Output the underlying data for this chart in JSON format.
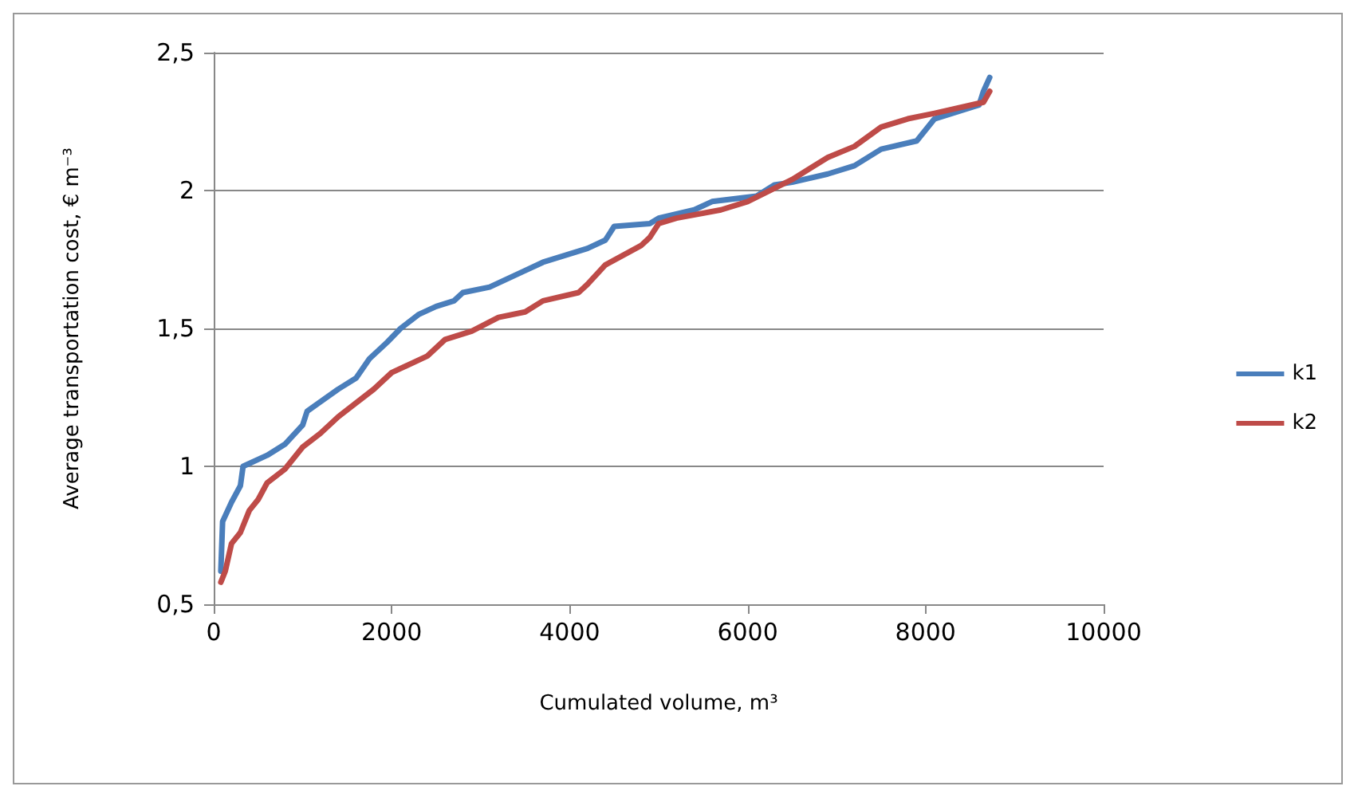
{
  "chart_data": {
    "type": "line",
    "xlabel": "Cumulated volume, m³",
    "ylabel": "Average transportation cost, € m⁻³",
    "xlim": [
      0,
      10000
    ],
    "xticks": [
      0,
      2000,
      4000,
      6000,
      8000,
      10000
    ],
    "ylim": [
      0.5,
      2.5
    ],
    "yticks": [
      {
        "value": 0.5,
        "label": "0,5"
      },
      {
        "value": 1,
        "label": "1"
      },
      {
        "value": 1.5,
        "label": "1,5"
      },
      {
        "value": 2,
        "label": "2"
      },
      {
        "value": 2.5,
        "label": "2,5"
      }
    ],
    "grid": "y",
    "legend": "right",
    "marker": "none",
    "line_style": "solid",
    "series": [
      {
        "name": "k1",
        "color": "#4a7ebb",
        "x": [
          80,
          100,
          200,
          300,
          330,
          600,
          800,
          1000,
          1050,
          1400,
          1600,
          1750,
          1950,
          2100,
          2300,
          2500,
          2700,
          2800,
          3100,
          3500,
          3700,
          4200,
          4400,
          4500,
          4900,
          5000,
          5400,
          5600,
          6100,
          6300,
          6500,
          6900,
          7200,
          7500,
          7900,
          8100,
          8600,
          8650,
          8720
        ],
        "values": [
          0.62,
          0.8,
          0.87,
          0.93,
          1.0,
          1.04,
          1.08,
          1.15,
          1.2,
          1.28,
          1.32,
          1.39,
          1.45,
          1.5,
          1.55,
          1.58,
          1.6,
          1.63,
          1.65,
          1.71,
          1.74,
          1.79,
          1.82,
          1.87,
          1.88,
          1.9,
          1.93,
          1.96,
          1.98,
          2.02,
          2.03,
          2.06,
          2.09,
          2.15,
          2.18,
          2.26,
          2.31,
          2.36,
          2.41
        ]
      },
      {
        "name": "k2",
        "color": "#be4b48",
        "x": [
          80,
          130,
          200,
          300,
          400,
          500,
          600,
          800,
          1000,
          1200,
          1400,
          1800,
          2000,
          2400,
          2600,
          2900,
          3200,
          3500,
          3700,
          4100,
          4200,
          4400,
          4800,
          4900,
          5000,
          5200,
          5700,
          6000,
          6500,
          6900,
          7200,
          7500,
          7800,
          8100,
          8650,
          8720
        ],
        "values": [
          0.58,
          0.62,
          0.72,
          0.76,
          0.84,
          0.88,
          0.94,
          0.99,
          1.07,
          1.12,
          1.18,
          1.28,
          1.34,
          1.4,
          1.46,
          1.49,
          1.54,
          1.56,
          1.6,
          1.63,
          1.66,
          1.73,
          1.8,
          1.83,
          1.88,
          1.9,
          1.93,
          1.96,
          2.04,
          2.12,
          2.16,
          2.23,
          2.26,
          2.28,
          2.32,
          2.36
        ]
      }
    ]
  }
}
